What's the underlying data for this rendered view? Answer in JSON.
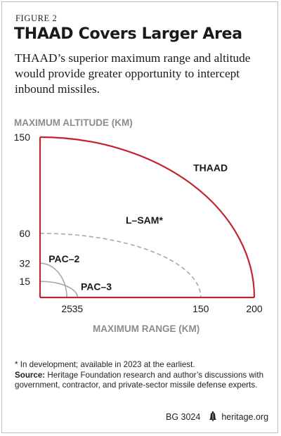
{
  "figure_label": "FIGURE 2",
  "title": "THAAD Covers Larger Area",
  "subtitle": "THAAD’s superior maximum range and altitude would provide greater opportunity to intercept inbound missiles.",
  "chart_data": {
    "type": "line",
    "xlabel": "MAXIMUM RANGE (KM)",
    "ylabel": "MAXIMUM ALTITUDE (KM)",
    "xlim": [
      0,
      200
    ],
    "ylim": [
      0,
      150
    ],
    "x_ticks": [
      25,
      35,
      150,
      200
    ],
    "y_ticks": [
      15,
      32,
      60,
      150
    ],
    "series": [
      {
        "name": "THAAD",
        "range": 200,
        "altitude": 150,
        "color": "#c0272d",
        "style": "solid"
      },
      {
        "name": "L-SAM*",
        "range": 150,
        "altitude": 60,
        "color": "#a8a8a8",
        "style": "dashed"
      },
      {
        "name": "PAC-3",
        "range": 35,
        "altitude": 15,
        "color": "#a8a8a8",
        "style": "solid"
      },
      {
        "name": "PAC-2",
        "range": 25,
        "altitude": 32,
        "color": "#a8a8a8",
        "style": "solid"
      }
    ],
    "axis_color": "#c0272d",
    "axis_label_color": "#8c8c8c"
  },
  "footnote": {
    "note": "* In development; available in 2023 at the earliest.",
    "source_label": "Source:",
    "source_text": "Heritage Foundation research and author’s discussions with government, contractor, and private-sector missile defense experts."
  },
  "footer": {
    "code": "BG 3024",
    "site": "heritage.org",
    "icon": "liberty-bell-icon"
  }
}
